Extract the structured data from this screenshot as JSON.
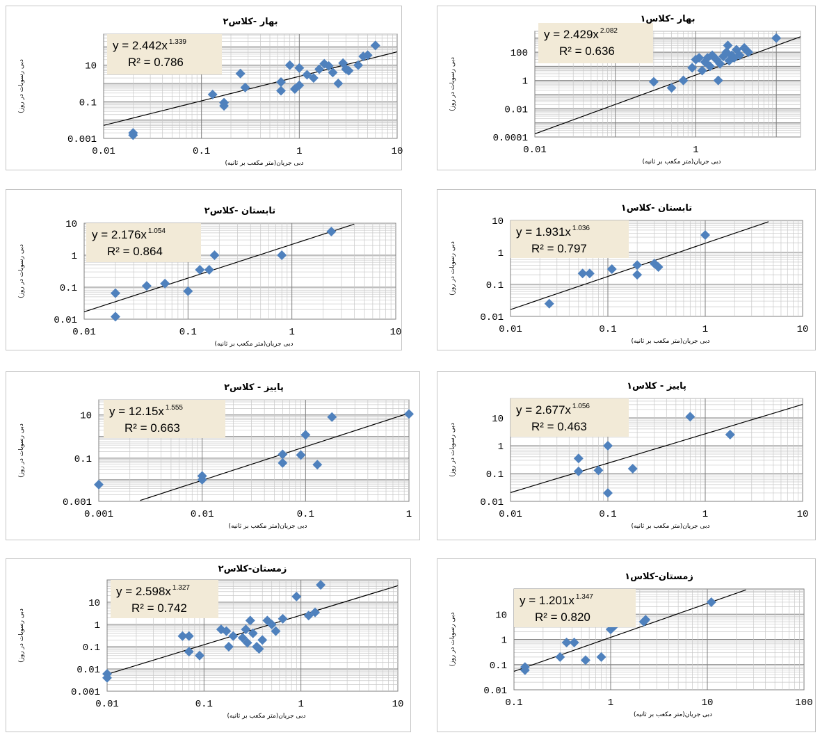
{
  "chart_data": [
    {
      "type": "scatter",
      "title": "بهار -کلاس۲",
      "xlabel": "دبی جریان(متر مکعب بر ثانیه)",
      "ylabel": "دبی رسوبات در روز)",
      "log_x": true,
      "log_y": true,
      "xlim": [
        0.01,
        10
      ],
      "ylim": [
        0.001,
        500
      ],
      "x_ticks": [
        "0.01",
        "0.1",
        "1",
        "10"
      ],
      "y_ticks": [
        "0.001",
        "0.1",
        "10"
      ],
      "y_tick_values": [
        0.001,
        0.1,
        10
      ],
      "equation": "y = 2.442x",
      "exponent": "1.339",
      "r2": "R² = 0.786",
      "trend": {
        "a": 2.442,
        "b": 1.339
      },
      "marker_color": "#4f81bd",
      "points": [
        [
          0.02,
          0.0015
        ],
        [
          0.02,
          0.002
        ],
        [
          0.13,
          0.25
        ],
        [
          0.17,
          0.09
        ],
        [
          0.17,
          0.06
        ],
        [
          0.25,
          3.5
        ],
        [
          0.28,
          0.6
        ],
        [
          0.65,
          1.2
        ],
        [
          0.65,
          0.4
        ],
        [
          0.8,
          10
        ],
        [
          0.9,
          0.5
        ],
        [
          1.0,
          0.8
        ],
        [
          1.0,
          7
        ],
        [
          1.2,
          3
        ],
        [
          1.4,
          2
        ],
        [
          1.6,
          6
        ],
        [
          1.8,
          12
        ],
        [
          2.0,
          9
        ],
        [
          2.2,
          4
        ],
        [
          2.5,
          1
        ],
        [
          2.8,
          13
        ],
        [
          3.0,
          6
        ],
        [
          3.2,
          5
        ],
        [
          4.0,
          10
        ],
        [
          4.5,
          30
        ],
        [
          5.0,
          35
        ],
        [
          6.0,
          120
        ]
      ]
    },
    {
      "type": "scatter",
      "title": "بهار -کلاس۱",
      "xlabel": "دبی جریان(متر مکعب بر ثانیه)",
      "ylabel": "دبی رسوبات در روز)",
      "log_x": true,
      "log_y": true,
      "xlim": [
        0.01,
        20
      ],
      "ylim": [
        0.0001,
        3000
      ],
      "x_ticks": [
        "0.01",
        "1"
      ],
      "y_ticks": [
        "0.0001",
        "0.01",
        "1",
        "100"
      ],
      "y_tick_values": [
        0.0001,
        0.01,
        1,
        100
      ],
      "equation": "y = 2.429x",
      "exponent": "2.082",
      "r2": "R² = 0.636",
      "trend": {
        "a": 2.429,
        "b": 2.082
      },
      "marker_color": "#4f81bd",
      "points": [
        [
          0.3,
          0.8
        ],
        [
          0.5,
          0.3
        ],
        [
          0.7,
          1
        ],
        [
          0.9,
          8
        ],
        [
          1.0,
          30
        ],
        [
          1.1,
          40
        ],
        [
          1.2,
          5
        ],
        [
          1.3,
          20
        ],
        [
          1.4,
          40
        ],
        [
          1.5,
          10
        ],
        [
          1.6,
          60
        ],
        [
          1.8,
          30
        ],
        [
          1.9,
          1
        ],
        [
          2.0,
          15
        ],
        [
          2.2,
          50
        ],
        [
          2.4,
          100
        ],
        [
          2.5,
          300
        ],
        [
          2.6,
          25
        ],
        [
          2.8,
          60
        ],
        [
          3.0,
          40
        ],
        [
          3.2,
          150
        ],
        [
          3.5,
          60
        ],
        [
          4.0,
          200
        ],
        [
          4.5,
          100
        ],
        [
          10,
          1000
        ]
      ]
    },
    {
      "type": "scatter",
      "title": "تابستان -کلاس۲",
      "xlabel": "دبی جریان(متر مکعب بر ثانیه)",
      "ylabel": "دبی رسوبات در روز)",
      "log_x": true,
      "log_y": true,
      "xlim": [
        0.01,
        10
      ],
      "ylim": [
        0.01,
        10
      ],
      "x_ticks": [
        "0.01",
        "0.1",
        "1",
        "10"
      ],
      "y_ticks": [
        "0.01",
        "0.1",
        "1",
        "10"
      ],
      "y_tick_values": [
        0.01,
        0.1,
        1,
        10
      ],
      "equation": "y = 2.176x",
      "exponent": "1.054",
      "r2": "R² = 0.864",
      "trend": {
        "a": 2.176,
        "b": 1.054
      },
      "marker_color": "#4f81bd",
      "points": [
        [
          0.02,
          0.065
        ],
        [
          0.02,
          0.012
        ],
        [
          0.04,
          0.11
        ],
        [
          0.06,
          0.13
        ],
        [
          0.1,
          0.075
        ],
        [
          0.13,
          0.35
        ],
        [
          0.16,
          0.35
        ],
        [
          0.18,
          1.0
        ],
        [
          0.8,
          1.0
        ],
        [
          2.4,
          5.5
        ]
      ]
    },
    {
      "type": "scatter",
      "title": "تابستان -کلاس۱",
      "xlabel": "دبی جریان(متر مکعب بر ثانیه)",
      "ylabel": "دبی رسوبات در روز)",
      "log_x": true,
      "log_y": true,
      "xlim": [
        0.01,
        10
      ],
      "ylim": [
        0.01,
        10
      ],
      "x_ticks": [
        "0.01",
        "0.1",
        "1",
        "10"
      ],
      "y_ticks": [
        "0.01",
        "0.1",
        "1",
        "10"
      ],
      "y_tick_values": [
        0.01,
        0.1,
        1,
        10
      ],
      "equation": "y = 1.931x",
      "exponent": "1.036",
      "r2": "R² = 0.797",
      "trend": {
        "a": 1.931,
        "b": 1.036
      },
      "marker_color": "#4f81bd",
      "points": [
        [
          0.025,
          0.025
        ],
        [
          0.055,
          0.22
        ],
        [
          0.065,
          0.22
        ],
        [
          0.11,
          0.3
        ],
        [
          0.2,
          0.4
        ],
        [
          0.2,
          0.2
        ],
        [
          0.3,
          0.45
        ],
        [
          0.33,
          0.35
        ],
        [
          1.0,
          3.5
        ]
      ]
    },
    {
      "type": "scatter",
      "title": "پاییز - کلاس۲",
      "xlabel": "دبی جریان(متر مکعب بر ثانیه)",
      "ylabel": "دبی رسوبات در روز)",
      "log_x": true,
      "log_y": true,
      "xlim": [
        0.001,
        1
      ],
      "ylim": [
        0.001,
        50
      ],
      "x_ticks": [
        "0.001",
        "0.01",
        "0.1",
        "1"
      ],
      "y_ticks": [
        "0.001",
        "0.1",
        "10"
      ],
      "y_tick_values": [
        0.001,
        0.1,
        10
      ],
      "equation": "y = 12.15x",
      "exponent": "1.555",
      "r2": "R² = 0.663",
      "trend": {
        "a": 12.15,
        "b": 1.555
      },
      "marker_color": "#4f81bd",
      "points": [
        [
          0.001,
          0.006
        ],
        [
          0.01,
          0.015
        ],
        [
          0.01,
          0.01
        ],
        [
          0.06,
          0.15
        ],
        [
          0.06,
          0.06
        ],
        [
          0.09,
          0.14
        ],
        [
          0.1,
          1.2
        ],
        [
          0.13,
          0.05
        ],
        [
          0.18,
          8
        ],
        [
          1.0,
          11
        ]
      ]
    },
    {
      "type": "scatter",
      "title": "پاییز - کلاس۱",
      "xlabel": "دبی جریان(متر مکعب بر ثانیه)",
      "ylabel": "دبی رسوبات در روز)",
      "log_x": true,
      "log_y": true,
      "xlim": [
        0.01,
        10
      ],
      "ylim": [
        0.01,
        50
      ],
      "x_ticks": [
        "0.01",
        "0.1",
        "1",
        "10"
      ],
      "y_ticks": [
        "0.01",
        "0.1",
        "1",
        "10"
      ],
      "y_tick_values": [
        0.01,
        0.1,
        1,
        10
      ],
      "equation": "y = 2.677x",
      "exponent": "1.056",
      "r2": "R² = 0.463",
      "trend": {
        "a": 2.677,
        "b": 1.056
      },
      "marker_color": "#4f81bd",
      "points": [
        [
          0.05,
          0.35
        ],
        [
          0.05,
          0.12
        ],
        [
          0.08,
          0.13
        ],
        [
          0.1,
          1.0
        ],
        [
          0.1,
          0.02
        ],
        [
          0.18,
          0.15
        ],
        [
          0.7,
          11
        ],
        [
          1.8,
          2.5
        ]
      ]
    },
    {
      "type": "scatter",
      "title": "زمستان-کلاس۲",
      "xlabel": "دبی جریان(متر مکعب بر ثانیه)",
      "ylabel": "دبی رسوبات در روز)",
      "log_x": true,
      "log_y": true,
      "xlim": [
        0.01,
        10
      ],
      "ylim": [
        0.001,
        100
      ],
      "x_ticks": [
        "0.01",
        "0.1",
        "1",
        "10"
      ],
      "y_ticks": [
        "0.001",
        "0.01",
        "0.1",
        "1",
        "10"
      ],
      "y_tick_values": [
        0.001,
        0.01,
        0.1,
        1,
        10
      ],
      "equation": "y = 2.598x",
      "exponent": "1.327",
      "r2": "R² = 0.742",
      "trend": {
        "a": 2.598,
        "b": 1.327
      },
      "marker_color": "#4f81bd",
      "points": [
        [
          0.01,
          0.006
        ],
        [
          0.01,
          0.004
        ],
        [
          0.06,
          0.3
        ],
        [
          0.07,
          0.3
        ],
        [
          0.07,
          0.06
        ],
        [
          0.09,
          0.04
        ],
        [
          0.15,
          0.6
        ],
        [
          0.17,
          0.5
        ],
        [
          0.18,
          0.1
        ],
        [
          0.2,
          0.3
        ],
        [
          0.25,
          0.25
        ],
        [
          0.27,
          0.6
        ],
        [
          0.28,
          0.15
        ],
        [
          0.3,
          1.5
        ],
        [
          0.32,
          0.4
        ],
        [
          0.35,
          0.1
        ],
        [
          0.37,
          0.08
        ],
        [
          0.4,
          0.2
        ],
        [
          0.45,
          1.5
        ],
        [
          0.5,
          1.0
        ],
        [
          0.55,
          0.5
        ],
        [
          0.65,
          1.8
        ],
        [
          0.9,
          18
        ],
        [
          1.2,
          2.5
        ],
        [
          1.4,
          3.5
        ],
        [
          1.6,
          60
        ]
      ]
    },
    {
      "type": "scatter",
      "title": "زمستان-کلاس۱",
      "xlabel": "دبی جریان(متر مکعب بر ثانیه)",
      "ylabel": "دبی رسوبات در روز)",
      "log_x": true,
      "log_y": true,
      "xlim": [
        0.1,
        100
      ],
      "ylim": [
        0.01,
        100
      ],
      "x_ticks": [
        "0.1",
        "1",
        "10",
        "100"
      ],
      "y_ticks": [
        "0.01",
        "0.1",
        "1",
        "10"
      ],
      "y_tick_values": [
        0.01,
        0.1,
        1,
        10
      ],
      "equation": "y = 1.201x",
      "exponent": "1.347",
      "r2": "R² = 0.820",
      "trend": {
        "a": 1.201,
        "b": 1.347
      },
      "marker_color": "#4f81bd",
      "points": [
        [
          0.13,
          0.08
        ],
        [
          0.13,
          0.06
        ],
        [
          0.3,
          0.2
        ],
        [
          0.35,
          0.75
        ],
        [
          0.42,
          0.75
        ],
        [
          0.55,
          0.15
        ],
        [
          0.8,
          0.2
        ],
        [
          1.0,
          2.5
        ],
        [
          1.1,
          3.5
        ],
        [
          2.2,
          5
        ],
        [
          2.3,
          6
        ],
        [
          11,
          30
        ]
      ]
    }
  ]
}
